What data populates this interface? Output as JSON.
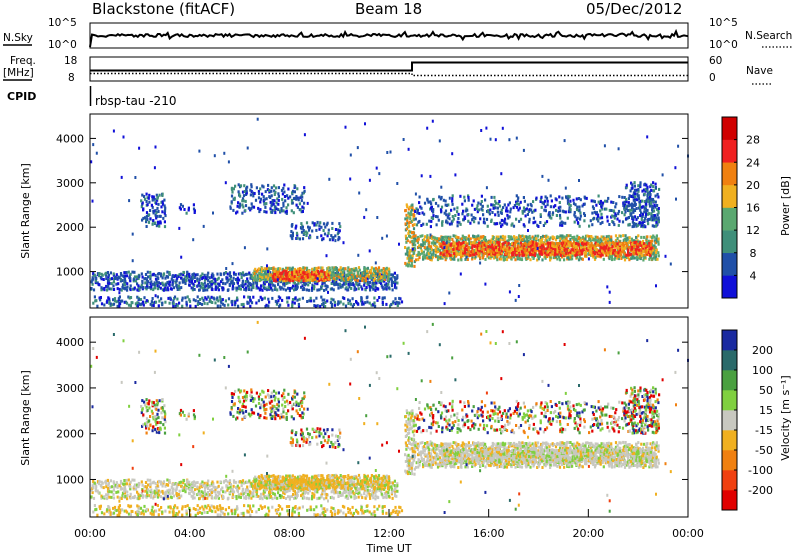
{
  "header": {
    "title": "Blackstone (fitACF)",
    "beam": "Beam 18",
    "date": "05/Dec/2012"
  },
  "top_panels": {
    "nsky_label": "N.Sky",
    "nsearch_label": "N.Search",
    "nsky_ticks": [
      "10^5",
      "10^0"
    ],
    "nsearch_ticks": [
      "10^5",
      "10^0"
    ],
    "freq_label_1": "Freq.",
    "freq_label_2": "[MHz]",
    "freq_ticks": [
      "18",
      "8"
    ],
    "nave_label": "Nave",
    "nave_ticks": [
      "60",
      "0"
    ],
    "cpid_label": "CPID",
    "cpid_value": "rbsp-tau -210"
  },
  "chart_data": [
    {
      "type": "heatmap",
      "name": "power",
      "xlabel": "",
      "ylabel": "Slant Range [km]",
      "y_ticks": [
        1000,
        2000,
        3000,
        4000
      ],
      "ylim": [
        180,
        4550
      ],
      "colorbar": {
        "label": "Power [dB]",
        "ticks": [
          4,
          8,
          12,
          16,
          20,
          24,
          28
        ],
        "range": [
          0,
          32
        ],
        "colors": [
          "#1010d8",
          "#2050a8",
          "#3f8f7a",
          "#5aa870",
          "#f0b020",
          "#f08010",
          "#f02020",
          "#d00000"
        ]
      }
    },
    {
      "type": "heatmap",
      "name": "velocity",
      "xlabel": "Time UT",
      "ylabel": "Slant Range [km]",
      "x_ticks": [
        "00:00",
        "04:00",
        "08:00",
        "12:00",
        "16:00",
        "20:00",
        "00:00"
      ],
      "y_ticks": [
        1000,
        2000,
        3000,
        4000
      ],
      "ylim": [
        180,
        4550
      ],
      "colorbar": {
        "label": "Velocity [m s⁻¹]",
        "ticks": [
          200,
          100,
          50,
          15,
          -15,
          -50,
          -100,
          -200
        ],
        "colors": [
          "#1a2aa0",
          "#2a6a6a",
          "#4aa040",
          "#80d040",
          "#c8c8c0",
          "#f0b020",
          "#f08010",
          "#f04010",
          "#e00000"
        ]
      }
    }
  ]
}
